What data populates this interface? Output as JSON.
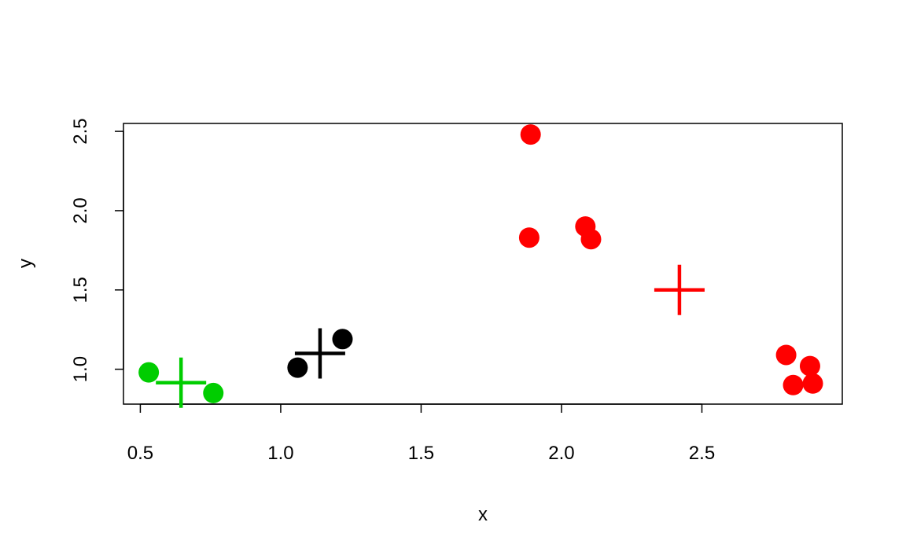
{
  "chart_data": {
    "type": "scatter",
    "title": "",
    "xlabel": "x",
    "ylabel": "y",
    "xlim": [
      0.44,
      3.0
    ],
    "ylim": [
      0.78,
      2.55
    ],
    "xticks": [
      "0.5",
      "1.0",
      "1.5",
      "2.0",
      "2.5"
    ],
    "yticks": [
      "1.0",
      "1.5",
      "2.0",
      "2.5"
    ],
    "grid": false,
    "legend": false,
    "series": [
      {
        "color": "#00CD00",
        "marker": "filled-circle",
        "points": [
          {
            "x": 0.53,
            "y": 0.98
          },
          {
            "x": 0.76,
            "y": 0.85
          }
        ]
      },
      {
        "color": "#000000",
        "marker": "filled-circle",
        "points": [
          {
            "x": 1.06,
            "y": 1.01
          },
          {
            "x": 1.22,
            "y": 1.19
          }
        ]
      },
      {
        "color": "#FF0000",
        "marker": "filled-circle",
        "points": [
          {
            "x": 1.89,
            "y": 2.48
          },
          {
            "x": 1.885,
            "y": 1.83
          },
          {
            "x": 2.085,
            "y": 1.9
          },
          {
            "x": 2.105,
            "y": 1.82
          },
          {
            "x": 2.8,
            "y": 1.09
          },
          {
            "x": 2.825,
            "y": 0.9
          },
          {
            "x": 2.885,
            "y": 1.02
          },
          {
            "x": 2.895,
            "y": 0.91
          }
        ]
      }
    ],
    "centers": [
      {
        "x": 0.645,
        "y": 0.915,
        "color": "#00CD00",
        "marker": "cross"
      },
      {
        "x": 1.14,
        "y": 1.1,
        "color": "#000000",
        "marker": "cross"
      },
      {
        "x": 2.42,
        "y": 1.5,
        "color": "#FF0000",
        "marker": "cross"
      }
    ]
  }
}
